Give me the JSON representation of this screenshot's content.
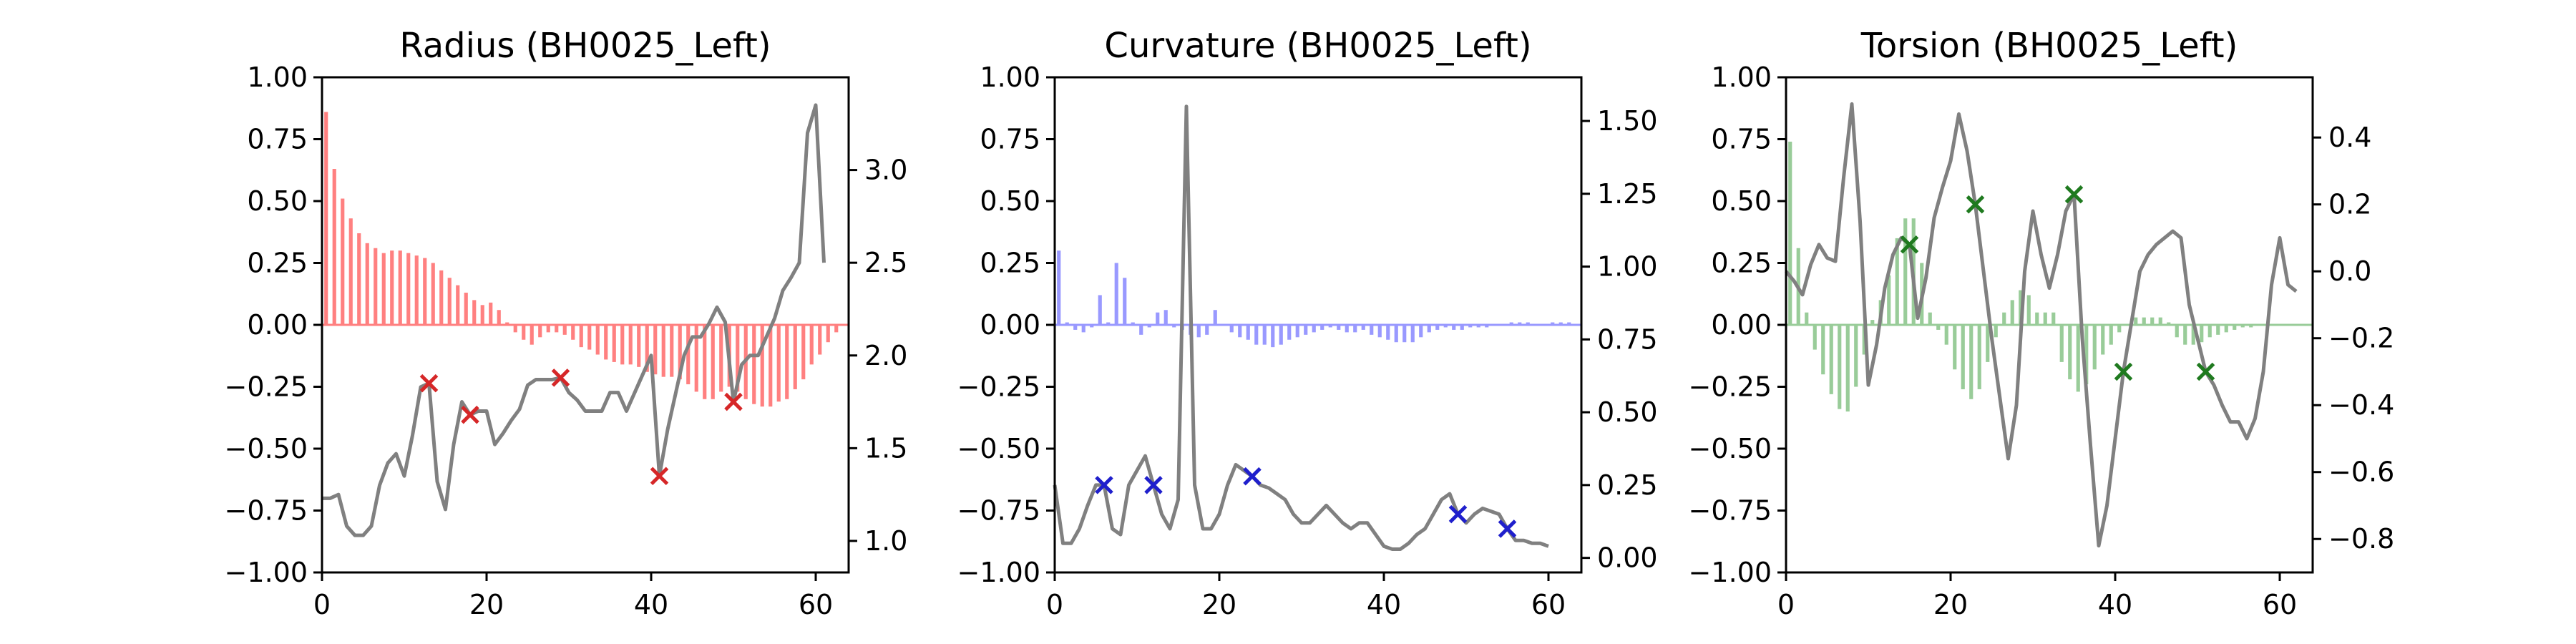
{
  "chart_data": [
    {
      "type": "bar",
      "title": "Radius (BH0025_Left)",
      "bar_color": "#ff8080",
      "line_color": "#808080",
      "marker_color": "#d62728",
      "x_range": [
        0,
        64
      ],
      "x_ticks": [
        "0",
        "20",
        "40",
        "60"
      ],
      "y_left_range": [
        -1.0,
        1.0
      ],
      "y_left_ticks": [
        "1.00",
        "0.75",
        "0.50",
        "0.25",
        "0.00",
        "−0.25",
        "−0.50",
        "−0.75",
        "−1.00"
      ],
      "y_right_range": [
        0.83,
        3.5
      ],
      "y_right_ticks": [
        "1.0",
        "1.5",
        "2.0",
        "2.5",
        "3.0"
      ],
      "bars": [
        0.86,
        0.63,
        0.51,
        0.43,
        0.37,
        0.33,
        0.31,
        0.29,
        0.3,
        0.3,
        0.29,
        0.28,
        0.27,
        0.25,
        0.22,
        0.19,
        0.16,
        0.13,
        0.1,
        0.08,
        0.09,
        0.06,
        0.01,
        -0.03,
        -0.06,
        -0.08,
        -0.05,
        -0.03,
        -0.03,
        -0.04,
        -0.06,
        -0.09,
        -0.1,
        -0.12,
        -0.14,
        -0.15,
        -0.16,
        -0.16,
        -0.17,
        -0.19,
        -0.2,
        -0.21,
        -0.21,
        -0.22,
        -0.24,
        -0.27,
        -0.3,
        -0.3,
        -0.27,
        -0.25,
        -0.27,
        -0.3,
        -0.32,
        -0.33,
        -0.33,
        -0.31,
        -0.3,
        -0.26,
        -0.22,
        -0.16,
        -0.12,
        -0.07,
        -0.03
      ],
      "line": [
        1.23,
        1.23,
        1.25,
        1.08,
        1.03,
        1.03,
        1.08,
        1.3,
        1.42,
        1.47,
        1.35,
        1.57,
        1.83,
        1.85,
        1.32,
        1.17,
        1.52,
        1.75,
        1.68,
        1.7,
        1.7,
        1.52,
        1.58,
        1.65,
        1.71,
        1.84,
        1.87,
        1.87,
        1.87,
        1.88,
        1.8,
        1.76,
        1.7,
        1.7,
        1.7,
        1.8,
        1.8,
        1.7,
        1.8,
        1.9,
        2.0,
        1.35,
        1.6,
        1.8,
        2.0,
        2.1,
        2.1,
        2.17,
        2.26,
        2.18,
        1.75,
        1.95,
        2.0,
        2.0,
        2.1,
        2.2,
        2.35,
        2.42,
        2.5,
        3.2,
        3.35,
        2.5
      ]
    },
    {
      "type": "bar",
      "title": "Curvature (BH0025_Left)",
      "bar_color": "#9999ff",
      "line_color": "#808080",
      "marker_color": "#1f1fcc",
      "x_range": [
        0,
        64
      ],
      "x_ticks": [
        "0",
        "20",
        "40",
        "60"
      ],
      "y_left_range": [
        -1.0,
        1.0
      ],
      "y_left_ticks": [
        "1.00",
        "0.75",
        "0.50",
        "0.25",
        "0.00",
        "−0.25",
        "−0.50",
        "−0.75",
        "−1.00"
      ],
      "y_right_range": [
        -0.05,
        1.65
      ],
      "y_right_ticks": [
        "0.00",
        "0.25",
        "0.50",
        "0.75",
        "1.00",
        "1.25",
        "1.50"
      ],
      "bars": [
        0.3,
        0.01,
        -0.02,
        -0.03,
        -0.01,
        0.12,
        0.01,
        0.25,
        0.19,
        0.01,
        -0.04,
        -0.01,
        0.05,
        0.06,
        -0.01,
        -0.02,
        -0.04,
        -0.05,
        -0.04,
        0.06,
        0.0,
        -0.03,
        -0.05,
        -0.06,
        -0.08,
        -0.08,
        -0.09,
        -0.08,
        -0.06,
        -0.05,
        -0.04,
        -0.03,
        -0.02,
        -0.01,
        -0.02,
        -0.03,
        -0.03,
        -0.02,
        -0.04,
        -0.05,
        -0.06,
        -0.07,
        -0.07,
        -0.07,
        -0.05,
        -0.03,
        -0.02,
        -0.01,
        -0.02,
        -0.02,
        -0.01,
        -0.01,
        -0.01,
        0.0,
        0.0,
        0.01,
        0.01,
        0.01,
        0.0,
        0.0,
        0.01,
        0.01,
        0.01
      ],
      "line": [
        0.25,
        0.05,
        0.05,
        0.1,
        0.18,
        0.25,
        0.25,
        0.1,
        0.08,
        0.25,
        0.3,
        0.35,
        0.25,
        0.15,
        0.1,
        0.2,
        1.55,
        0.25,
        0.1,
        0.1,
        0.15,
        0.25,
        0.32,
        0.3,
        0.28,
        0.25,
        0.24,
        0.22,
        0.2,
        0.15,
        0.12,
        0.12,
        0.15,
        0.18,
        0.15,
        0.12,
        0.1,
        0.12,
        0.12,
        0.08,
        0.04,
        0.03,
        0.03,
        0.05,
        0.08,
        0.1,
        0.15,
        0.2,
        0.22,
        0.15,
        0.12,
        0.15,
        0.17,
        0.16,
        0.15,
        0.1,
        0.06,
        0.06,
        0.05,
        0.05,
        0.04
      ]
    },
    {
      "type": "bar",
      "title": "Torsion (BH0025_Left)",
      "bar_color": "#99cc99",
      "line_color": "#808080",
      "marker_color": "#1f7a1f",
      "x_range": [
        0,
        64
      ],
      "x_ticks": [
        "0",
        "20",
        "40",
        "60"
      ],
      "y_left_range": [
        -1.0,
        1.0
      ],
      "y_left_ticks": [
        "1.00",
        "0.75",
        "0.50",
        "0.25",
        "0.00",
        "−0.25",
        "−0.50",
        "−0.75",
        "−1.00"
      ],
      "y_right_range": [
        -0.9,
        0.58
      ],
      "y_right_ticks": [
        "0.4",
        "0.2",
        "0.0",
        "−0.2",
        "−0.4",
        "−0.6",
        "−0.8"
      ],
      "bars": [
        0.74,
        0.31,
        0.05,
        -0.1,
        -0.2,
        -0.28,
        -0.34,
        -0.35,
        -0.25,
        -0.12,
        0.02,
        0.1,
        0.2,
        0.35,
        0.43,
        0.43,
        0.25,
        0.05,
        -0.02,
        -0.08,
        -0.18,
        -0.26,
        -0.3,
        -0.26,
        -0.15,
        -0.05,
        0.05,
        0.1,
        0.14,
        0.12,
        0.05,
        0.05,
        0.05,
        -0.15,
        -0.22,
        -0.27,
        -0.24,
        -0.18,
        -0.12,
        -0.08,
        -0.03,
        0.0,
        0.03,
        0.03,
        0.03,
        0.03,
        0.01,
        -0.05,
        -0.08,
        -0.08,
        -0.07,
        -0.05,
        -0.04,
        -0.03,
        -0.02,
        -0.01,
        -0.01,
        0.0,
        0.0,
        0.0,
        0.0,
        0.0,
        0.0
      ],
      "line": [
        0.0,
        -0.03,
        -0.07,
        0.02,
        0.08,
        0.04,
        0.03,
        0.28,
        0.5,
        0.15,
        -0.34,
        -0.22,
        -0.05,
        0.05,
        0.1,
        0.08,
        -0.14,
        -0.02,
        0.16,
        0.25,
        0.33,
        0.47,
        0.36,
        0.2,
        0.0,
        -0.2,
        -0.38,
        -0.56,
        -0.4,
        0.0,
        0.18,
        0.05,
        -0.05,
        0.05,
        0.18,
        0.23,
        -0.2,
        -0.52,
        -0.82,
        -0.7,
        -0.5,
        -0.3,
        -0.15,
        0.0,
        0.05,
        0.08,
        0.1,
        0.12,
        0.1,
        -0.1,
        -0.2,
        -0.3,
        -0.34,
        -0.4,
        -0.45,
        -0.45,
        -0.5,
        -0.44,
        -0.3,
        -0.04,
        0.1,
        -0.04,
        -0.06
      ]
    }
  ]
}
